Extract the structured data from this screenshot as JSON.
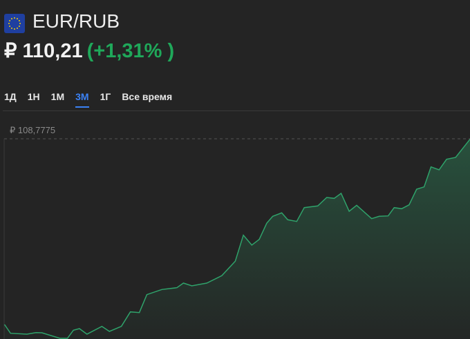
{
  "header": {
    "pair": "EUR/RUB",
    "flag_icon": "eu-flag-icon",
    "price": "₽ 110,21",
    "change": "(+1,31% )"
  },
  "tabs": [
    {
      "label": "1Д"
    },
    {
      "label": "1Н"
    },
    {
      "label": "1М"
    },
    {
      "label": "3М",
      "active": true
    },
    {
      "label": "1Г"
    },
    {
      "label": "Все время"
    }
  ],
  "chart": {
    "max_label": "₽ 108,7775",
    "line_color": "#2fa36b",
    "accent": "#3b82f6",
    "positive": "#1fa85a"
  }
}
